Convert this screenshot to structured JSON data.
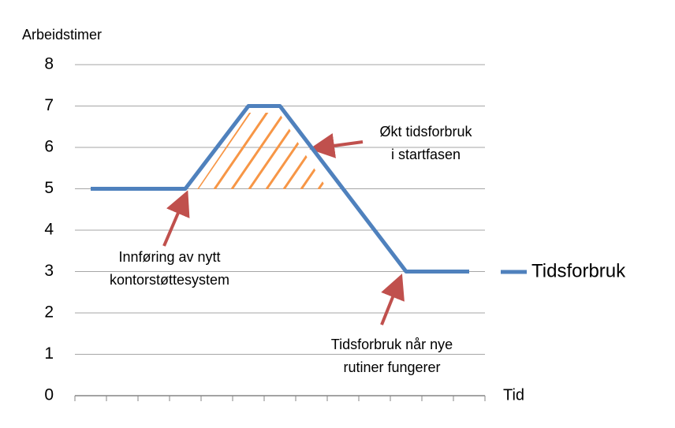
{
  "chart_data": {
    "type": "line",
    "y_label": "Arbeidstimer",
    "x_label": "Tid",
    "categories": [
      null,
      null,
      null,
      null,
      null,
      null,
      null,
      null,
      null,
      null,
      null,
      null,
      null
    ],
    "series": [
      {
        "name": "Tidsforbruk",
        "color": "#4f81bd",
        "values": [
          5,
          5,
          5,
          5,
          6,
          7,
          7,
          6,
          5,
          4,
          3,
          3,
          3
        ]
      }
    ],
    "ylim": [
      0,
      8
    ],
    "yticks": [
      0,
      1,
      2,
      3,
      4,
      5,
      6,
      7,
      8
    ],
    "grid": true,
    "legend": "right",
    "annotations": [
      {
        "lines": [
          "Innføring av nytt",
          "kontorstøttesystem"
        ]
      },
      {
        "lines": [
          "Økt tidsforbruk",
          "i startfasen"
        ]
      },
      {
        "lines": [
          "Tidsforbruk når nye",
          "rutiner fungerer"
        ]
      }
    ]
  }
}
